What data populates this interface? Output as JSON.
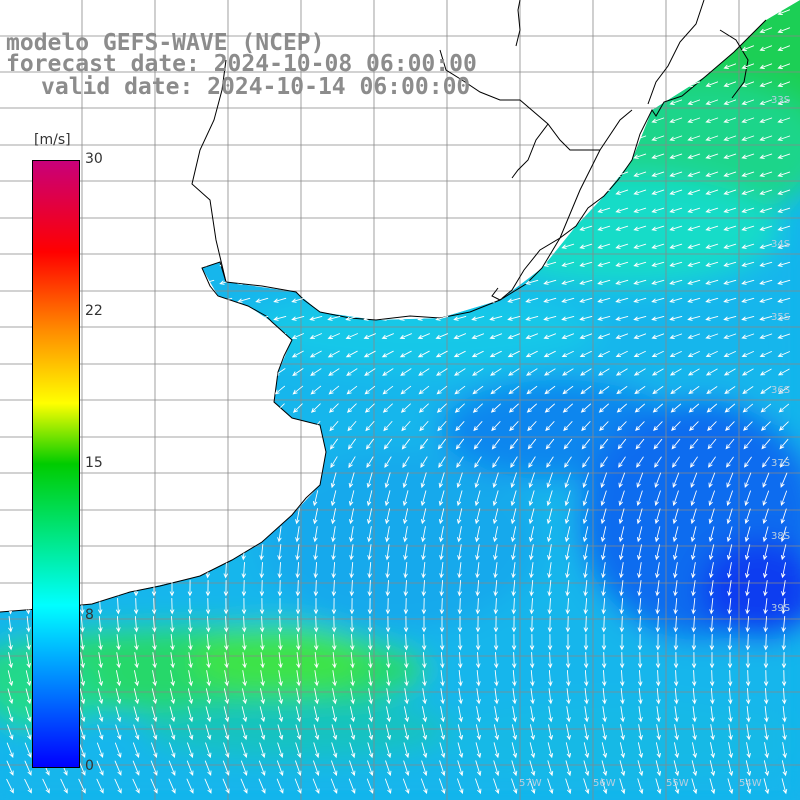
{
  "title": {
    "line1": "modelo GEFS-WAVE (NCEP)",
    "line2": "forecast date: 2024-10-08 06:00:00",
    "line3": "valid date: 2024-10-14 06:00:00"
  },
  "colorbar": {
    "unit": "[m/s]",
    "min": 0,
    "max": 30,
    "ticks": [
      "30",
      "22",
      "15",
      "8",
      "0"
    ],
    "tick_values": [
      30,
      22,
      15,
      8,
      0
    ],
    "colors": {
      "0": "#0000ff",
      "8": "#00ffff",
      "15": "#00cc00",
      "18": "#ffff00",
      "22": "#ff8c00",
      "26": "#ff0000",
      "30": "#c8007a"
    }
  },
  "map": {
    "lat_labels": [
      "33S",
      "34S",
      "35S",
      "36S",
      "37S",
      "38S",
      "39S"
    ],
    "lon_labels": [
      "57W",
      "56W",
      "55W",
      "54W"
    ],
    "land_color": "#ffffff",
    "coastline_color": "#000000",
    "grid_color": "#888888",
    "arrow_color": "#ffffff",
    "field": {
      "description_units": "m/s",
      "upper_right_green_region_max": 12,
      "central_cyan_region": 8,
      "east_blue_minimum": 3,
      "southwest_green_band": 11
    }
  }
}
